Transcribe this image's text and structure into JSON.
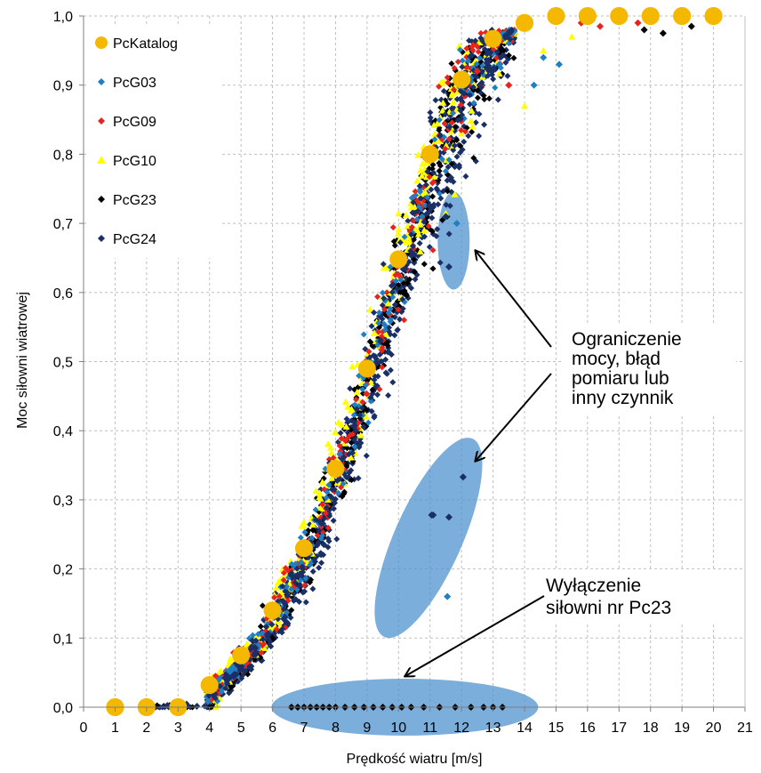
{
  "chart_data": {
    "type": "scatter",
    "xlabel": "Prędkość wiatru [m/s]",
    "ylabel": "Moc siłowni wiatrowej",
    "xlim": [
      0,
      21
    ],
    "ylim": [
      0,
      1
    ],
    "x_ticks": [
      "0",
      "1",
      "2",
      "3",
      "4",
      "5",
      "6",
      "7",
      "8",
      "9",
      "10",
      "11",
      "12",
      "13",
      "14",
      "15",
      "16",
      "17",
      "18",
      "19",
      "20",
      "21"
    ],
    "y_ticks": [
      "0,0",
      "0,1",
      "0,2",
      "0,3",
      "0,4",
      "0,5",
      "0,6",
      "0,7",
      "0,8",
      "0,9",
      "1,0"
    ],
    "grid": "dashed",
    "legend_position": "top-left",
    "series": [
      {
        "name": "PcKatalog",
        "color": "#f5b800",
        "marker": "circle",
        "x": [
          1,
          2,
          3,
          4,
          5,
          6,
          7,
          8,
          9,
          10,
          11,
          12,
          13,
          14,
          15,
          16,
          17,
          18,
          19,
          20
        ],
        "y": [
          0.0,
          0.0,
          0.0,
          0.032,
          0.075,
          0.14,
          0.23,
          0.345,
          0.49,
          0.648,
          0.8,
          0.908,
          0.967,
          0.99,
          1.0,
          1.0,
          1.0,
          1.0,
          1.0,
          1.0
        ]
      },
      {
        "name": "PcG03",
        "color": "#1f7fc2",
        "marker": "diamond",
        "x": [
          11.85,
          12.05,
          11.55,
          13.2,
          14.3,
          15.1,
          14.6
        ],
        "y": [
          0.7,
          0.333,
          0.16,
          0.93,
          0.9,
          0.93,
          0.94
        ]
      },
      {
        "name": "PcG09",
        "color": "#e8231c",
        "marker": "diamond",
        "x": [
          12.5,
          13.5,
          15.8,
          16.4,
          17.6
        ],
        "y": [
          0.92,
          0.9,
          0.99,
          0.985,
          0.99
        ]
      },
      {
        "name": "PcG10",
        "color": "#ffff00",
        "marker": "triangle",
        "x": [
          4.2,
          14.0,
          14.6,
          15.5
        ],
        "y": [
          0.0,
          0.87,
          0.95,
          0.97
        ]
      },
      {
        "name": "PcG23",
        "color": "#000000",
        "marker": "diamond",
        "x": [
          6.6,
          6.8,
          7.0,
          7.2,
          7.4,
          7.6,
          7.8,
          8.0,
          8.3,
          8.6,
          8.9,
          9.2,
          9.5,
          9.8,
          10.1,
          10.4,
          10.8,
          11.3,
          11.8,
          12.3,
          12.7,
          13.0,
          13.3,
          17.8,
          18.4,
          19.3
        ],
        "y": [
          0,
          0,
          0,
          0,
          0,
          0,
          0,
          0,
          0,
          0,
          0,
          0,
          0,
          0,
          0,
          0,
          0,
          0,
          0,
          0,
          0,
          0,
          0,
          0.98,
          0.975,
          0.985
        ]
      },
      {
        "name": "PcG24",
        "color": "#1a2f66",
        "marker": "diamond",
        "x": [
          11.5,
          11.6,
          11.05,
          11.1,
          11.6,
          12.05
        ],
        "y": [
          0.71,
          0.637,
          0.278,
          0.278,
          0.275,
          0.333
        ]
      }
    ],
    "annotations": [
      {
        "text_lines": [
          "Ograniczenie",
          "mocy, błąd",
          "pomiaru lub",
          "inny czynnik"
        ]
      },
      {
        "text_lines": [
          "Wyłączenie",
          "siłowni nr Pc23"
        ]
      }
    ]
  }
}
